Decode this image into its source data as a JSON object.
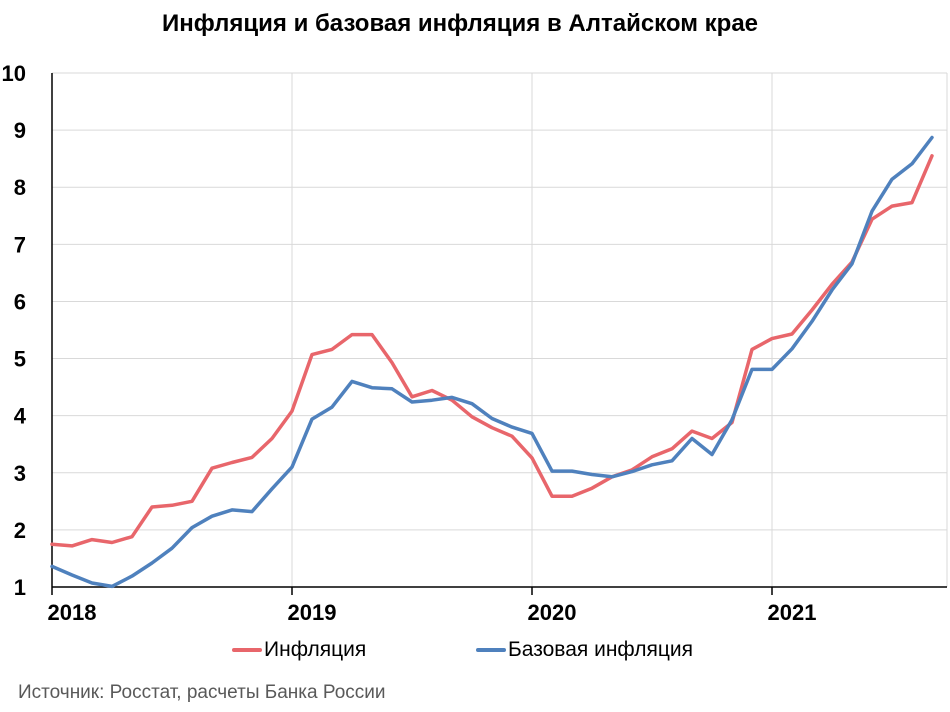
{
  "chart_data": {
    "type": "line",
    "title": "Инфляция и базовая инфляция в Алтайском крае",
    "xlabel": "",
    "ylabel": "",
    "ylim": [
      1,
      10
    ],
    "yticks": [
      1,
      2,
      3,
      4,
      5,
      6,
      7,
      8,
      9,
      10
    ],
    "x_tick_labels": [
      "2018",
      "2019",
      "2020",
      "2021"
    ],
    "x_start": "2018-01",
    "grid": true,
    "legend_position": "bottom",
    "series": [
      {
        "name": "Инфляция",
        "color": "#E8666B",
        "values": [
          1.75,
          1.72,
          1.83,
          1.78,
          1.88,
          2.4,
          2.43,
          2.5,
          3.08,
          3.18,
          3.27,
          3.6,
          4.08,
          5.07,
          5.16,
          5.42,
          5.42,
          4.93,
          4.33,
          4.44,
          4.27,
          3.98,
          3.79,
          3.64,
          3.26,
          2.59,
          2.59,
          2.73,
          2.93,
          3.05,
          3.28,
          3.42,
          3.73,
          3.6,
          3.88,
          5.16,
          5.35,
          5.43,
          5.85,
          6.3,
          6.69,
          7.44,
          7.67,
          7.73,
          8.55
        ]
      },
      {
        "name": "Базовая инфляция",
        "color": "#4F81BD",
        "values": [
          1.36,
          1.21,
          1.07,
          1.01,
          1.19,
          1.42,
          1.68,
          2.04,
          2.24,
          2.35,
          2.32,
          2.72,
          3.1,
          3.94,
          4.15,
          4.6,
          4.49,
          4.47,
          4.24,
          4.27,
          4.32,
          4.21,
          3.95,
          3.8,
          3.69,
          3.03,
          3.03,
          2.97,
          2.93,
          3.02,
          3.14,
          3.21,
          3.6,
          3.32,
          3.93,
          4.81,
          4.81,
          5.17,
          5.65,
          6.2,
          6.66,
          7.58,
          8.14,
          8.41,
          8.87
        ]
      }
    ]
  },
  "source": "Источник: Росстат, расчеты Банка России"
}
